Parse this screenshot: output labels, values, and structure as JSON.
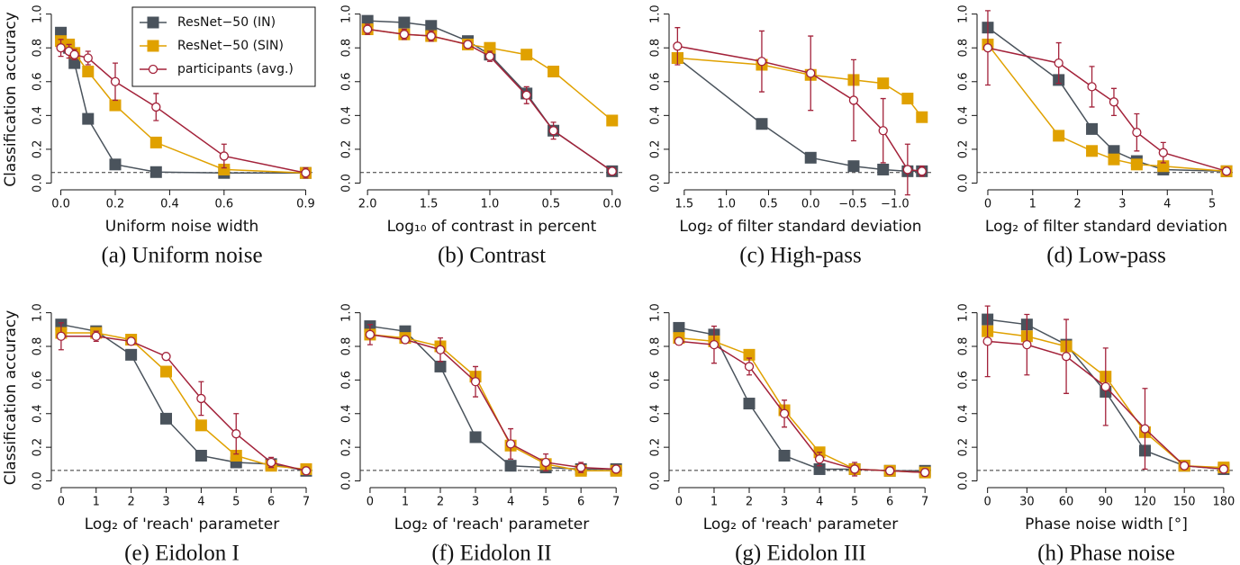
{
  "chart_data": [
    {
      "type": "line",
      "caption": "(a) Uniform noise",
      "xlabel": "Uniform noise width",
      "ylabel": "Classification accuracy",
      "x": [
        0,
        0.03,
        0.05,
        0.1,
        0.2,
        0.35,
        0.6,
        0.9
      ],
      "xlim": [
        -0.035,
        0.925
      ],
      "xticks": [
        {
          "value": 0,
          "label": "0.0"
        },
        0.2,
        0.4,
        0.6,
        0.9
      ],
      "ylim": [
        -0.04,
        1.03
      ],
      "yticks": [
        {
          "value": 0,
          "label": "0.0"
        },
        0.2,
        0.4,
        0.6,
        0.8,
        {
          "value": 1,
          "label": "1.0"
        }
      ],
      "chance": 0.0625,
      "legend": "upper right",
      "series": [
        {
          "name": "ResNet−50 (IN)",
          "color": "#4a535c",
          "marker": "square",
          "values": [
            0.89,
            0.8,
            0.71,
            0.38,
            0.11,
            0.065,
            0.06,
            0.06
          ]
        },
        {
          "name": "ResNet−50 (SIN)",
          "color": "#e0a100",
          "marker": "square",
          "values": [
            0.84,
            0.82,
            0.77,
            0.66,
            0.46,
            0.24,
            0.08,
            0.06
          ]
        },
        {
          "name": "participants (avg.)",
          "color": "#a3223a",
          "marker": "circle",
          "values": [
            0.8,
            0.78,
            0.76,
            0.74,
            0.6,
            0.45,
            0.16,
            0.06
          ],
          "errors": [
            0.05,
            0.04,
            0.03,
            0.04,
            0.11,
            0.08,
            0.07,
            0.03
          ]
        }
      ]
    },
    {
      "type": "line",
      "caption": "(b) Contrast",
      "xlabel": "Log₁₀ of contrast in percent",
      "x": [
        2.0,
        1.7,
        1.48,
        1.18,
        1.0,
        0.7,
        0.48,
        0
      ],
      "xlim": [
        2.06,
        -0.09
      ],
      "xticks": [
        {
          "value": 2,
          "label": "2.0"
        },
        1.5,
        {
          "value": 1,
          "label": "1.0"
        },
        0.5,
        {
          "value": 0,
          "label": "0.0"
        }
      ],
      "ylim": [
        -0.04,
        1.03
      ],
      "yticks": [
        {
          "value": 0,
          "label": "0.0"
        },
        0.2,
        0.4,
        0.6,
        0.8,
        {
          "value": 1,
          "label": "1.0"
        }
      ],
      "chance": 0.0625,
      "series": [
        {
          "color": "#4a535c",
          "marker": "square",
          "values": [
            0.96,
            0.95,
            0.93,
            0.84,
            0.76,
            0.53,
            0.31,
            0.07
          ]
        },
        {
          "color": "#e0a100",
          "marker": "square",
          "values": [
            0.91,
            0.88,
            0.87,
            0.82,
            0.8,
            0.76,
            0.66,
            0.37
          ]
        },
        {
          "color": "#a3223a",
          "marker": "circle",
          "values": [
            0.91,
            0.88,
            0.87,
            0.82,
            0.75,
            0.52,
            0.31,
            0.07
          ],
          "errors": [
            0.03,
            0.03,
            0.03,
            0.02,
            0.03,
            0.05,
            0.05,
            0.02
          ]
        }
      ]
    },
    {
      "type": "line",
      "caption": "(c) High-pass",
      "xlabel": "Log₂ of filter standard deviation",
      "x": [
        1.58,
        0.58,
        0,
        -0.51,
        -0.86,
        -1.15,
        -1.32
      ],
      "xlim": [
        1.68,
        -1.44
      ],
      "xticks": [
        1.5,
        {
          "value": 1,
          "label": "1.0"
        },
        0.5,
        {
          "value": 0,
          "label": "0.0"
        },
        {
          "value": -0.5,
          "label": "−0.5"
        },
        {
          "value": -1,
          "label": "−1.0"
        }
      ],
      "ylim": [
        -0.04,
        1.03
      ],
      "yticks": [
        {
          "value": 0,
          "label": "0.0"
        },
        0.2,
        0.4,
        0.6,
        0.8,
        {
          "value": 1,
          "label": "1.0"
        }
      ],
      "chance": 0.0625,
      "series": [
        {
          "color": "#4a535c",
          "marker": "square",
          "values": [
            0.74,
            0.35,
            0.15,
            0.1,
            0.08,
            0.07,
            0.07
          ]
        },
        {
          "color": "#e0a100",
          "marker": "square",
          "values": [
            0.74,
            0.7,
            0.64,
            0.61,
            0.59,
            0.5,
            0.39
          ]
        },
        {
          "color": "#a3223a",
          "marker": "circle",
          "values": [
            0.81,
            0.72,
            0.65,
            0.49,
            0.31,
            0.08,
            0.07
          ],
          "errors": [
            0.11,
            0.18,
            0.22,
            0.24,
            0.19,
            0.15,
            0.03
          ]
        }
      ]
    },
    {
      "type": "line",
      "caption": "(d) Low-pass",
      "xlabel": "Log₂ of filter standard deviation",
      "x": [
        0,
        1.58,
        2.32,
        2.81,
        3.32,
        3.91,
        5.32
      ],
      "xlim": [
        -0.24,
        5.52
      ],
      "xticks": [
        0,
        1,
        2,
        3,
        4,
        5
      ],
      "ylim": [
        -0.04,
        1.03
      ],
      "yticks": [
        {
          "value": 0,
          "label": "0.0"
        },
        0.2,
        0.4,
        0.6,
        0.8,
        {
          "value": 1,
          "label": "1.0"
        }
      ],
      "chance": 0.0625,
      "series": [
        {
          "color": "#4a535c",
          "marker": "square",
          "values": [
            0.92,
            0.61,
            0.32,
            0.19,
            0.13,
            0.08,
            0.07
          ]
        },
        {
          "color": "#e0a100",
          "marker": "square",
          "values": [
            0.82,
            0.28,
            0.19,
            0.14,
            0.11,
            0.1,
            0.07
          ]
        },
        {
          "color": "#a3223a",
          "marker": "circle",
          "values": [
            0.8,
            0.71,
            0.57,
            0.48,
            0.3,
            0.18,
            0.07
          ],
          "errors": [
            0.22,
            0.12,
            0.12,
            0.08,
            0.11,
            0.06,
            0.02
          ]
        }
      ]
    },
    {
      "type": "line",
      "caption": "(e) Eidolon I",
      "xlabel": "Log₂ of 'reach' parameter",
      "ylabel": "Classification accuracy",
      "x": [
        0,
        1,
        2,
        3,
        4,
        5,
        6,
        7
      ],
      "xlim": [
        -0.28,
        7.18
      ],
      "xticks": [
        0,
        1,
        2,
        3,
        4,
        5,
        6,
        7
      ],
      "ylim": [
        -0.04,
        1.03
      ],
      "yticks": [
        {
          "value": 0,
          "label": "0.0"
        },
        0.2,
        0.4,
        0.6,
        0.8,
        {
          "value": 1,
          "label": "1.0"
        }
      ],
      "chance": 0.0625,
      "series": [
        {
          "color": "#4a535c",
          "marker": "square",
          "values": [
            0.93,
            0.89,
            0.75,
            0.37,
            0.15,
            0.11,
            0.1,
            0.06
          ]
        },
        {
          "color": "#e0a100",
          "marker": "square",
          "values": [
            0.88,
            0.88,
            0.84,
            0.65,
            0.33,
            0.15,
            0.09,
            0.07
          ]
        },
        {
          "color": "#a3223a",
          "marker": "circle",
          "values": [
            0.86,
            0.86,
            0.83,
            0.74,
            0.49,
            0.28,
            0.11,
            0.06
          ],
          "errors": [
            0.08,
            0.03,
            0.02,
            0.02,
            0.1,
            0.12,
            0.03,
            0.02
          ]
        }
      ]
    },
    {
      "type": "line",
      "caption": "(f) Eidolon II",
      "xlabel": "Log₂ of 'reach' parameter",
      "x": [
        0,
        1,
        2,
        3,
        4,
        5,
        6,
        7
      ],
      "xlim": [
        -0.28,
        7.2
      ],
      "xticks": [
        0,
        1,
        2,
        3,
        4,
        5,
        6,
        7
      ],
      "ylim": [
        -0.04,
        1.03
      ],
      "yticks": [
        {
          "value": 0,
          "label": "0.0"
        },
        0.2,
        0.4,
        0.6,
        0.8,
        {
          "value": 1,
          "label": "1.0"
        }
      ],
      "chance": 0.0625,
      "series": [
        {
          "color": "#4a535c",
          "marker": "square",
          "values": [
            0.92,
            0.89,
            0.68,
            0.26,
            0.09,
            0.08,
            0.07,
            0.07
          ]
        },
        {
          "color": "#e0a100",
          "marker": "square",
          "values": [
            0.87,
            0.85,
            0.8,
            0.62,
            0.21,
            0.1,
            0.06,
            0.06
          ]
        },
        {
          "color": "#a3223a",
          "marker": "circle",
          "values": [
            0.87,
            0.84,
            0.78,
            0.59,
            0.22,
            0.11,
            0.08,
            0.07
          ],
          "errors": [
            0.06,
            0.02,
            0.07,
            0.09,
            0.09,
            0.05,
            0.03,
            0.02
          ]
        }
      ]
    },
    {
      "type": "line",
      "caption": "(g) Eidolon III",
      "xlabel": "Log₂ of 'reach' parameter",
      "x": [
        0,
        1,
        2,
        3,
        4,
        5,
        6,
        7
      ],
      "xlim": [
        -0.28,
        7.2
      ],
      "xticks": [
        0,
        1,
        2,
        3,
        4,
        5,
        6,
        7
      ],
      "ylim": [
        -0.04,
        1.03
      ],
      "yticks": [
        {
          "value": 0,
          "label": "0.0"
        },
        0.2,
        0.4,
        0.6,
        0.8,
        {
          "value": 1,
          "label": "1.0"
        }
      ],
      "chance": 0.0625,
      "series": [
        {
          "color": "#4a535c",
          "marker": "square",
          "values": [
            0.91,
            0.87,
            0.46,
            0.15,
            0.07,
            0.07,
            0.06,
            0.06
          ]
        },
        {
          "color": "#e0a100",
          "marker": "square",
          "values": [
            0.85,
            0.83,
            0.75,
            0.42,
            0.17,
            0.07,
            0.06,
            0.05
          ]
        },
        {
          "color": "#a3223a",
          "marker": "circle",
          "values": [
            0.83,
            0.81,
            0.68,
            0.4,
            0.13,
            0.07,
            0.06,
            0.05
          ],
          "errors": [
            0.02,
            0.11,
            0.05,
            0.08,
            0.04,
            0.04,
            0.02,
            0.02
          ]
        }
      ]
    },
    {
      "type": "line",
      "caption": "(h) Phase noise",
      "xlabel": "Phase noise width [°]",
      "x": [
        0,
        30,
        60,
        90,
        120,
        150,
        180
      ],
      "xlim": [
        -8,
        189
      ],
      "xticks": [
        0,
        30,
        60,
        90,
        120,
        150,
        180
      ],
      "ylim": [
        -0.04,
        1.03
      ],
      "yticks": [
        {
          "value": 0,
          "label": "0.0"
        },
        0.2,
        0.4,
        0.6,
        0.8,
        {
          "value": 1,
          "label": "1.0"
        }
      ],
      "chance": 0.0625,
      "series": [
        {
          "color": "#4a535c",
          "marker": "square",
          "values": [
            0.96,
            0.93,
            0.81,
            0.53,
            0.18,
            0.09,
            0.07
          ]
        },
        {
          "color": "#e0a100",
          "marker": "square",
          "values": [
            0.89,
            0.86,
            0.8,
            0.62,
            0.29,
            0.09,
            0.08
          ]
        },
        {
          "color": "#a3223a",
          "marker": "circle",
          "values": [
            0.83,
            0.81,
            0.74,
            0.56,
            0.31,
            0.09,
            0.07
          ],
          "errors": [
            0.21,
            0.18,
            0.22,
            0.23,
            0.24,
            0.02,
            0.02
          ]
        }
      ]
    }
  ]
}
